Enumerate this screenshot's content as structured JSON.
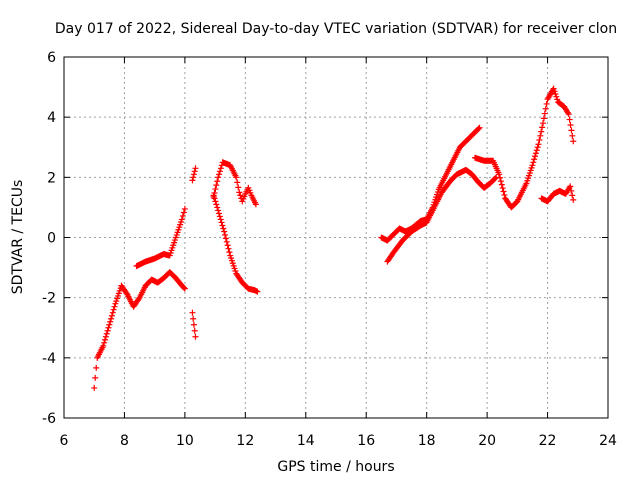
{
  "chart_data": {
    "type": "scatter",
    "title": "Day 017 of 2022, Sidereal Day-to-day VTEC variation (SDTVAR) for receiver clon",
    "xlabel": "GPS time / hours",
    "ylabel": "SDTVAR / TECUs",
    "xlim": [
      6,
      24
    ],
    "ylim": [
      -6,
      6
    ],
    "xticks": [
      "6",
      "8",
      "10",
      "12",
      "14",
      "16",
      "18",
      "20",
      "22",
      "24"
    ],
    "yticks": [
      "-6",
      "-4",
      "-2",
      "0",
      "2",
      "4",
      "6"
    ],
    "grid": true,
    "marker": "+",
    "color": "#ff0000",
    "series": [
      {
        "name": "trace-1",
        "points": [
          [
            7.0,
            -5.0
          ],
          [
            7.1,
            -4.0
          ],
          [
            7.3,
            -3.6
          ],
          [
            7.5,
            -2.9
          ],
          [
            7.7,
            -2.2
          ],
          [
            7.9,
            -1.6
          ],
          [
            8.1,
            -1.9
          ],
          [
            8.3,
            -2.3
          ],
          [
            8.5,
            -2.0
          ],
          [
            8.7,
            -1.6
          ],
          [
            8.9,
            -1.4
          ],
          [
            9.1,
            -1.5
          ],
          [
            9.3,
            -1.35
          ],
          [
            9.5,
            -1.15
          ],
          [
            9.7,
            -1.35
          ],
          [
            9.9,
            -1.6
          ],
          [
            10.0,
            -1.7
          ]
        ]
      },
      {
        "name": "trace-2",
        "points": [
          [
            8.4,
            -0.95
          ],
          [
            8.7,
            -0.8
          ],
          [
            9.0,
            -0.7
          ],
          [
            9.3,
            -0.55
          ],
          [
            9.5,
            -0.6
          ],
          [
            9.7,
            0.0
          ],
          [
            9.9,
            0.6
          ],
          [
            10.0,
            0.95
          ]
        ]
      },
      {
        "name": "trace-3",
        "points": [
          [
            10.25,
            -2.5
          ],
          [
            10.3,
            -2.9
          ],
          [
            10.35,
            -3.3
          ]
        ]
      },
      {
        "name": "trace-4",
        "points": [
          [
            10.25,
            1.9
          ],
          [
            10.3,
            2.1
          ],
          [
            10.35,
            2.3
          ]
        ]
      },
      {
        "name": "trace-5",
        "points": [
          [
            10.95,
            1.35
          ],
          [
            11.1,
            2.0
          ],
          [
            11.25,
            2.5
          ],
          [
            11.5,
            2.4
          ],
          [
            11.7,
            2.0
          ],
          [
            11.8,
            1.5
          ],
          [
            11.9,
            1.2
          ],
          [
            12.0,
            1.45
          ],
          [
            12.1,
            1.65
          ],
          [
            12.2,
            1.4
          ],
          [
            12.35,
            1.1
          ]
        ]
      },
      {
        "name": "trace-6",
        "points": [
          [
            10.95,
            1.4
          ],
          [
            11.1,
            0.9
          ],
          [
            11.3,
            0.2
          ],
          [
            11.5,
            -0.6
          ],
          [
            11.7,
            -1.2
          ],
          [
            11.9,
            -1.5
          ],
          [
            12.1,
            -1.7
          ],
          [
            12.3,
            -1.75
          ],
          [
            12.4,
            -1.8
          ]
        ]
      },
      {
        "name": "trace-7",
        "points": [
          [
            16.5,
            0.0
          ],
          [
            16.7,
            -0.1
          ],
          [
            16.9,
            0.1
          ],
          [
            17.1,
            0.3
          ],
          [
            17.3,
            0.2
          ],
          [
            17.5,
            0.3
          ],
          [
            17.8,
            0.55
          ],
          [
            18.0,
            0.6
          ],
          [
            18.2,
            1.0
          ],
          [
            18.4,
            1.6
          ],
          [
            18.7,
            2.2
          ],
          [
            18.9,
            2.6
          ],
          [
            19.1,
            3.0
          ],
          [
            19.3,
            3.2
          ],
          [
            19.5,
            3.4
          ],
          [
            19.75,
            3.65
          ]
        ]
      },
      {
        "name": "trace-8",
        "points": [
          [
            16.7,
            -0.8
          ],
          [
            16.9,
            -0.5
          ],
          [
            17.2,
            -0.1
          ],
          [
            17.5,
            0.2
          ],
          [
            17.8,
            0.4
          ],
          [
            18.0,
            0.5
          ],
          [
            18.2,
            0.9
          ],
          [
            18.5,
            1.5
          ],
          [
            18.8,
            1.9
          ],
          [
            19.0,
            2.1
          ],
          [
            19.3,
            2.25
          ],
          [
            19.5,
            2.1
          ],
          [
            19.7,
            1.85
          ],
          [
            19.9,
            1.65
          ],
          [
            20.1,
            1.8
          ],
          [
            20.3,
            2.0
          ]
        ]
      },
      {
        "name": "trace-9",
        "points": [
          [
            19.6,
            2.65
          ],
          [
            19.9,
            2.55
          ],
          [
            20.2,
            2.55
          ],
          [
            20.4,
            2.1
          ],
          [
            20.6,
            1.3
          ],
          [
            20.8,
            1.0
          ],
          [
            21.0,
            1.2
          ],
          [
            21.3,
            1.8
          ],
          [
            21.5,
            2.4
          ],
          [
            21.7,
            3.1
          ],
          [
            21.85,
            3.8
          ],
          [
            22.0,
            4.6
          ],
          [
            22.2,
            4.95
          ],
          [
            22.35,
            4.5
          ],
          [
            22.55,
            4.35
          ],
          [
            22.7,
            4.1
          ],
          [
            22.85,
            3.2
          ]
        ]
      },
      {
        "name": "trace-10",
        "points": [
          [
            21.8,
            1.3
          ],
          [
            22.0,
            1.2
          ],
          [
            22.2,
            1.45
          ],
          [
            22.4,
            1.55
          ],
          [
            22.6,
            1.45
          ],
          [
            22.75,
            1.7
          ],
          [
            22.85,
            1.25
          ]
        ]
      }
    ]
  }
}
